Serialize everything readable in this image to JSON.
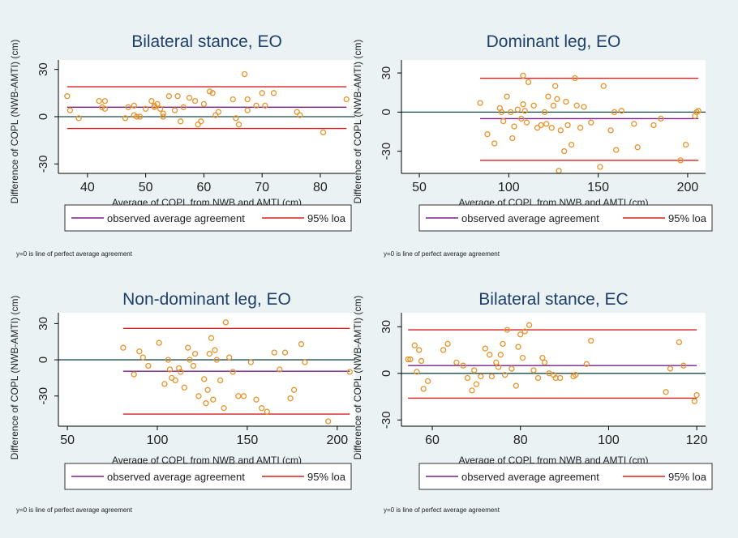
{
  "figure": {
    "background": "#eaf2f3",
    "plot_background": "#ffffff",
    "point_color": "#e8932a",
    "mean_line_color": "#7a1e8c",
    "loa_line_color": "#d42020",
    "zero_line_color": "#1a4a4a",
    "legend": {
      "mean_label": "observed average agreement",
      "loa_label": "95% loa"
    },
    "note": "y=0 is line of perfect average agreement"
  },
  "chart_data": [
    {
      "type": "scatter",
      "title": "Bilateral stance, EO",
      "xlabel": "Average of COPL from NWB and AMTI (cm)",
      "ylabel": "Difference of COPL (NWB-AMTI) (cm)",
      "xlim": [
        35,
        86
      ],
      "ylim": [
        -36,
        36
      ],
      "xticks": [
        40,
        50,
        60,
        70,
        80
      ],
      "yticks": [
        -30,
        0,
        30
      ],
      "mean": 6,
      "loa": [
        -7.5,
        19
      ],
      "grid": false,
      "legend_position": "bottom",
      "points": [
        [
          36.5,
          13
        ],
        [
          37,
          4
        ],
        [
          38.5,
          -1
        ],
        [
          42,
          10
        ],
        [
          42.5,
          6
        ],
        [
          43,
          10
        ],
        [
          43,
          5
        ],
        [
          46.5,
          -1
        ],
        [
          47,
          6
        ],
        [
          48,
          1
        ],
        [
          48.5,
          0
        ],
        [
          49,
          0
        ],
        [
          50,
          5
        ],
        [
          51,
          10
        ],
        [
          51.5,
          6
        ],
        [
          52,
          8
        ],
        [
          52.5,
          5
        ],
        [
          53,
          2
        ],
        [
          53,
          0
        ],
        [
          54,
          13
        ],
        [
          55,
          4
        ],
        [
          55.5,
          13
        ],
        [
          56,
          -3
        ],
        [
          56.5,
          6
        ],
        [
          57.5,
          12
        ],
        [
          58.5,
          10
        ],
        [
          59,
          -5
        ],
        [
          59.5,
          -3
        ],
        [
          60,
          8
        ],
        [
          61,
          16
        ],
        [
          61.5,
          15
        ],
        [
          62,
          1
        ],
        [
          62.5,
          3
        ],
        [
          65,
          11
        ],
        [
          65.5,
          -1
        ],
        [
          66,
          -5
        ],
        [
          67,
          27
        ],
        [
          67.5,
          11
        ],
        [
          67.5,
          4
        ],
        [
          69,
          7
        ],
        [
          70,
          15
        ],
        [
          70.5,
          7
        ],
        [
          72,
          15
        ],
        [
          76,
          3
        ],
        [
          76.5,
          1
        ],
        [
          80.5,
          -10
        ],
        [
          84.5,
          11
        ],
        [
          51.5,
          7
        ],
        [
          48,
          7
        ]
      ]
    },
    {
      "type": "scatter",
      "title": "Dominant leg, EO",
      "xlabel": "Average of COPL from NWB and AMTI (cm)",
      "ylabel": "Difference of COPL (NWB-AMTI) (cm)",
      "xlim": [
        40,
        210
      ],
      "ylim": [
        -47,
        40
      ],
      "xticks": [
        50,
        100,
        150,
        200
      ],
      "yticks": [
        -30,
        0,
        30
      ],
      "mean": -5,
      "loa": [
        -37,
        26
      ],
      "grid": false,
      "legend_position": "bottom",
      "points": [
        [
          84,
          7
        ],
        [
          88,
          -17
        ],
        [
          92,
          -24
        ],
        [
          95,
          3
        ],
        [
          96,
          0
        ],
        [
          97,
          -7
        ],
        [
          99,
          12
        ],
        [
          101,
          0
        ],
        [
          102,
          -20
        ],
        [
          103,
          -11
        ],
        [
          105,
          2
        ],
        [
          107,
          -5
        ],
        [
          108,
          6
        ],
        [
          108,
          28
        ],
        [
          109,
          1
        ],
        [
          110,
          -8
        ],
        [
          111,
          23
        ],
        [
          114,
          5
        ],
        [
          116,
          -12
        ],
        [
          118,
          -10
        ],
        [
          120,
          0
        ],
        [
          121,
          -9
        ],
        [
          122,
          12
        ],
        [
          124,
          -12
        ],
        [
          125,
          5
        ],
        [
          126,
          20
        ],
        [
          127,
          10
        ],
        [
          128,
          -45
        ],
        [
          129,
          -14
        ],
        [
          131,
          -30
        ],
        [
          132,
          8
        ],
        [
          133,
          -10
        ],
        [
          135,
          -25
        ],
        [
          137,
          26
        ],
        [
          138,
          5
        ],
        [
          140,
          -12
        ],
        [
          142,
          4
        ],
        [
          146,
          -8
        ],
        [
          151,
          -42
        ],
        [
          153,
          20
        ],
        [
          157,
          -14
        ],
        [
          159,
          0
        ],
        [
          160,
          -29
        ],
        [
          163,
          1
        ],
        [
          170,
          -9
        ],
        [
          172,
          -27
        ],
        [
          181,
          -10
        ],
        [
          185,
          -5
        ],
        [
          196,
          -37
        ],
        [
          199,
          -25
        ],
        [
          204,
          -3
        ],
        [
          206,
          1
        ],
        [
          205,
          0
        ]
      ]
    },
    {
      "type": "scatter",
      "title": "Non-dominant leg, EO",
      "xlabel": "Average of COPL from NWB and AMTI (cm)",
      "ylabel": "Difference of COPL (NWB-AMTI) (cm)",
      "xlim": [
        45,
        210
      ],
      "ylim": [
        -55,
        39
      ],
      "xticks": [
        50,
        100,
        150,
        200
      ],
      "yticks": [
        -30,
        0,
        30
      ],
      "mean": -9.5,
      "loa": [
        -45,
        26
      ],
      "grid": false,
      "legend_position": "bottom",
      "points": [
        [
          81,
          10
        ],
        [
          87,
          -12
        ],
        [
          90,
          7
        ],
        [
          92,
          2
        ],
        [
          95,
          -5
        ],
        [
          101,
          14
        ],
        [
          104,
          -20
        ],
        [
          106,
          0
        ],
        [
          107,
          -8
        ],
        [
          108,
          -15
        ],
        [
          110,
          -17
        ],
        [
          112,
          -7
        ],
        [
          113,
          -10
        ],
        [
          115,
          -23
        ],
        [
          117,
          10
        ],
        [
          118,
          0
        ],
        [
          120,
          -5
        ],
        [
          121,
          5
        ],
        [
          123,
          -30
        ],
        [
          126,
          -16
        ],
        [
          127,
          -36
        ],
        [
          128,
          -25
        ],
        [
          129,
          5
        ],
        [
          130,
          18
        ],
        [
          131,
          -33
        ],
        [
          132,
          8
        ],
        [
          133,
          0
        ],
        [
          135,
          -17
        ],
        [
          137,
          -40
        ],
        [
          138,
          31
        ],
        [
          140,
          2
        ],
        [
          142,
          -10
        ],
        [
          145,
          -30
        ],
        [
          148,
          -30
        ],
        [
          152,
          -2
        ],
        [
          155,
          -33
        ],
        [
          158,
          -40
        ],
        [
          161,
          -43
        ],
        [
          165,
          6
        ],
        [
          168,
          -8
        ],
        [
          171,
          6
        ],
        [
          174,
          -32
        ],
        [
          176,
          -25
        ],
        [
          180,
          13
        ],
        [
          182,
          -2
        ],
        [
          195,
          -51
        ],
        [
          207,
          -10
        ]
      ]
    },
    {
      "type": "scatter",
      "title": "Bilateral stance, EC",
      "xlabel": "Average of COPL from NWB and AMTI (cm)",
      "ylabel": "Difference of COPL (NWB-AMTI) (cm)",
      "xlim": [
        53,
        122
      ],
      "ylim": [
        -34,
        39
      ],
      "xticks": [
        60,
        80,
        100,
        120
      ],
      "yticks": [
        -30,
        0,
        30
      ],
      "mean": 5,
      "loa": [
        -16,
        28
      ],
      "grid": false,
      "legend_position": "bottom",
      "points": [
        [
          54.5,
          9
        ],
        [
          55,
          9
        ],
        [
          56,
          18
        ],
        [
          56.5,
          1
        ],
        [
          57,
          15
        ],
        [
          57.5,
          8
        ],
        [
          58,
          -10
        ],
        [
          59,
          -5
        ],
        [
          62.5,
          15
        ],
        [
          63.5,
          19
        ],
        [
          65.5,
          7
        ],
        [
          67,
          5
        ],
        [
          68,
          -3
        ],
        [
          69,
          -11
        ],
        [
          69.5,
          2
        ],
        [
          70,
          -7
        ],
        [
          71,
          -2
        ],
        [
          72,
          16
        ],
        [
          73,
          12
        ],
        [
          73.5,
          -2
        ],
        [
          74.5,
          7
        ],
        [
          75,
          4
        ],
        [
          75.5,
          12
        ],
        [
          76,
          19
        ],
        [
          76.5,
          -1
        ],
        [
          77,
          28
        ],
        [
          78,
          3
        ],
        [
          79,
          -8
        ],
        [
          79.5,
          17
        ],
        [
          80,
          25
        ],
        [
          80.5,
          10
        ],
        [
          81,
          27
        ],
        [
          82,
          31
        ],
        [
          83,
          2
        ],
        [
          84,
          -3
        ],
        [
          85,
          10
        ],
        [
          85.5,
          7
        ],
        [
          86.5,
          0
        ],
        [
          87.5,
          -1
        ],
        [
          88,
          -3
        ],
        [
          89,
          -3
        ],
        [
          92,
          -2
        ],
        [
          92.5,
          -1
        ],
        [
          95,
          6
        ],
        [
          96,
          21
        ],
        [
          113,
          -12
        ],
        [
          114,
          3
        ],
        [
          116,
          20
        ],
        [
          117,
          5
        ],
        [
          119.5,
          -18
        ],
        [
          120,
          -14
        ]
      ]
    }
  ]
}
